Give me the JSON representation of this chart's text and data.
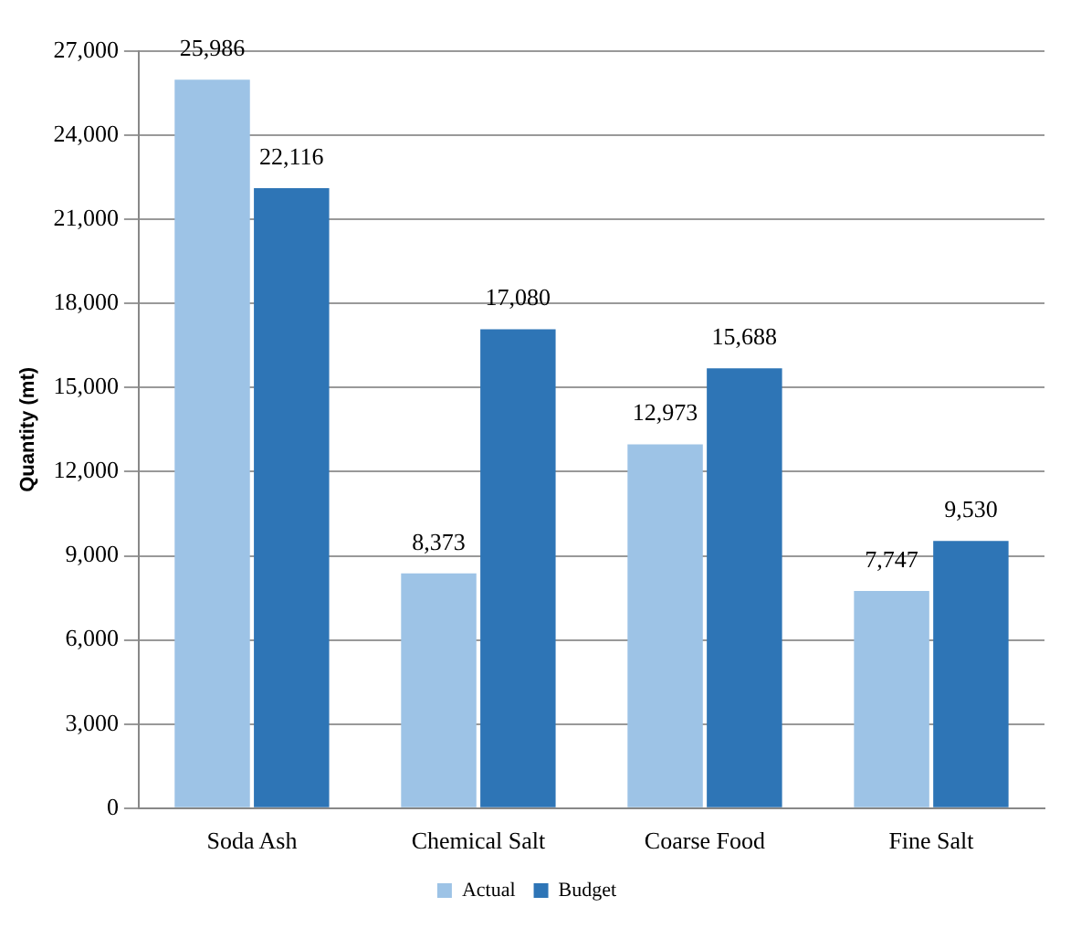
{
  "chart_data": {
    "type": "bar",
    "ylabel": "Quantity (mt)",
    "categories": [
      "Soda Ash",
      "Chemical Salt",
      "Coarse Food",
      "Fine Salt"
    ],
    "series": [
      {
        "name": "Actual",
        "color": "#9dc3e6",
        "values": [
          25986,
          8373,
          12973,
          7747
        ],
        "value_labels": [
          "25,986",
          "8,373",
          "12,973",
          "7,747"
        ]
      },
      {
        "name": "Budget",
        "color": "#2e75b6",
        "values": [
          22116,
          17080,
          15688,
          9530
        ],
        "value_labels": [
          "22,116",
          "17,080",
          "15,688",
          "9,530"
        ]
      }
    ],
    "ylim": [
      0,
      27000
    ],
    "yticks": [
      0,
      {
        "value": 3000,
        "label": "3,000"
      },
      {
        "value": 6000,
        "label": "6,000"
      },
      {
        "value": 9000,
        "label": "9,000"
      },
      {
        "value": 12000,
        "label": "12,000"
      },
      {
        "value": 15000,
        "label": "15,000"
      },
      {
        "value": 18000,
        "label": "18,000"
      },
      {
        "value": 21000,
        "label": "21,000"
      },
      {
        "value": 24000,
        "label": "24,000"
      },
      {
        "value": 27000,
        "label": "27,000"
      }
    ],
    "grid": "y",
    "legend": "bottom"
  }
}
